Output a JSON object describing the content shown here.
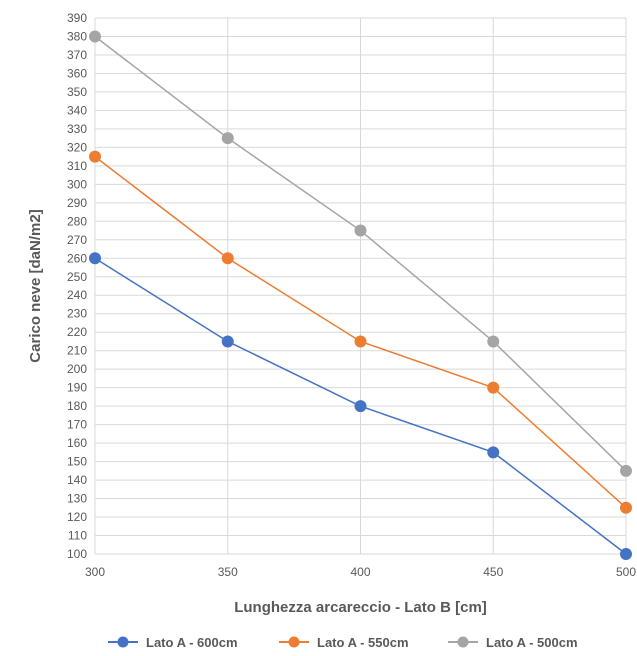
{
  "chart_data": {
    "type": "line",
    "title": "",
    "xlabel": "Lunghezza arcareccio - Lato B [cm]",
    "ylabel": "Carico neve [daN/m2]",
    "x": [
      300,
      350,
      400,
      450,
      500
    ],
    "xlim": [
      300,
      500
    ],
    "ylim": [
      100,
      390
    ],
    "ystep": 10,
    "grid": true,
    "legend_position": "bottom",
    "series": [
      {
        "name": "Lato A - 600cm",
        "color": "#4472C4",
        "values": [
          260,
          215,
          180,
          155,
          100
        ]
      },
      {
        "name": "Lato A - 550cm",
        "color": "#ED7D31",
        "values": [
          315,
          260,
          215,
          190,
          125
        ]
      },
      {
        "name": "Lato A - 500cm",
        "color": "#A5A5A5",
        "values": [
          380,
          325,
          275,
          215,
          145
        ]
      }
    ]
  }
}
